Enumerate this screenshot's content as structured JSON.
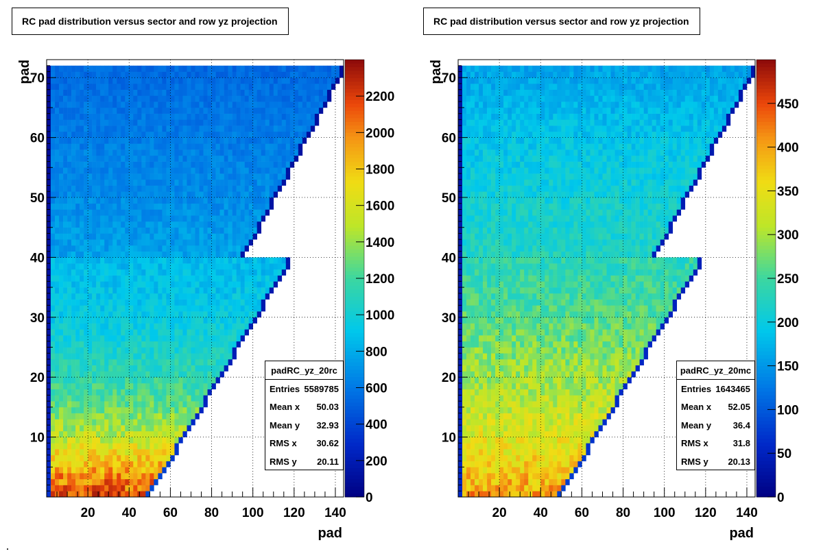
{
  "chart_data": [
    {
      "type": "heatmap",
      "title": "RC pad distribution versus sector and row yz projection",
      "xlabel": "pad",
      "ylabel": "pad",
      "xlim": [
        0,
        144
      ],
      "ylim": [
        0,
        73
      ],
      "x_ticks": [
        20,
        40,
        60,
        80,
        100,
        120,
        140
      ],
      "y_ticks": [
        10,
        20,
        30,
        40,
        50,
        60,
        70
      ],
      "z_range": [
        0,
        2400
      ],
      "colorbar_ticks": [
        0,
        200,
        400,
        600,
        800,
        1000,
        1200,
        1400,
        1600,
        1800,
        2000,
        2200
      ],
      "grid": true,
      "colormap": "rainbow",
      "stats": {
        "name": "padRC_yz_20rc",
        "entries_label": "Entries",
        "entries": "5589785",
        "mean_x_label": "Mean x",
        "mean_x": "50.03",
        "mean_y_label": "Mean y",
        "mean_y": "32.93",
        "rms_x_label": "RMS x",
        "rms_x": "30.62",
        "rms_y_label": "RMS y",
        "rms_y": "20.11"
      },
      "outer_rows_max_pad": [
        [
          41,
          96
        ],
        [
          72,
          144
        ]
      ],
      "inner_rows_max_pad": [
        [
          1,
          50
        ],
        [
          40,
          118
        ]
      ],
      "density_profile": [
        [
          1,
          2150
        ],
        [
          5,
          1900
        ],
        [
          10,
          1550
        ],
        [
          15,
          1300
        ],
        [
          20,
          1150
        ],
        [
          25,
          1050
        ],
        [
          30,
          950
        ],
        [
          35,
          900
        ],
        [
          40,
          860
        ],
        [
          41,
          760
        ],
        [
          50,
          680
        ],
        [
          60,
          620
        ],
        [
          72,
          540
        ]
      ]
    },
    {
      "type": "heatmap",
      "title": "RC pad distribution versus sector and row yz projection",
      "xlabel": "pad",
      "ylabel": "pad",
      "xlim": [
        0,
        144
      ],
      "ylim": [
        0,
        73
      ],
      "x_ticks": [
        20,
        40,
        60,
        80,
        100,
        120,
        140
      ],
      "y_ticks": [
        10,
        20,
        30,
        40,
        50,
        60,
        70
      ],
      "z_range": [
        0,
        500
      ],
      "colorbar_ticks": [
        0,
        50,
        100,
        150,
        200,
        250,
        300,
        350,
        400,
        450
      ],
      "grid": true,
      "colormap": "rainbow",
      "stats": {
        "name": "padRC_yz_20mc",
        "entries_label": "Entries",
        "entries": "1643465",
        "mean_x_label": "Mean x",
        "mean_x": "52.05",
        "mean_y_label": "Mean y",
        "mean_y": "36.4",
        "rms_x_label": "RMS x",
        "rms_x": "31.8",
        "rms_y_label": "RMS y",
        "rms_y": "20.13"
      },
      "outer_rows_max_pad": [
        [
          41,
          96
        ],
        [
          72,
          144
        ]
      ],
      "inner_rows_max_pad": [
        [
          1,
          50
        ],
        [
          40,
          118
        ]
      ],
      "density_profile": [
        [
          1,
          400
        ],
        [
          5,
          370
        ],
        [
          10,
          340
        ],
        [
          15,
          320
        ],
        [
          20,
          300
        ],
        [
          25,
          280
        ],
        [
          30,
          260
        ],
        [
          35,
          245
        ],
        [
          40,
          235
        ],
        [
          41,
          225
        ],
        [
          50,
          210
        ],
        [
          60,
          190
        ],
        [
          72,
          160
        ]
      ]
    }
  ]
}
